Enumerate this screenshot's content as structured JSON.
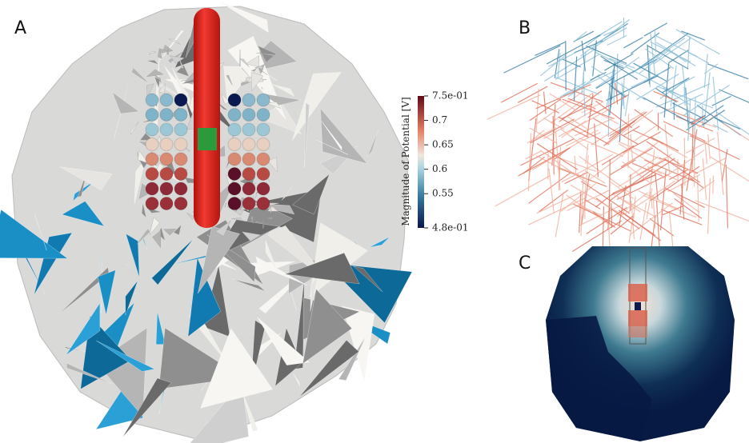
{
  "panels": [
    {
      "label": "A"
    },
    {
      "label": "B"
    },
    {
      "label": "C"
    }
  ],
  "colorbar": {
    "title": "Magnitude of Potential [V]",
    "range": [
      0.48,
      0.75
    ],
    "ticks": [
      {
        "value": 0.75,
        "label": "7.5e-01"
      },
      0.7,
      0.65,
      0.6,
      0.55,
      {
        "value": 0.48,
        "label": "4.8e-01"
      }
    ]
  }
}
